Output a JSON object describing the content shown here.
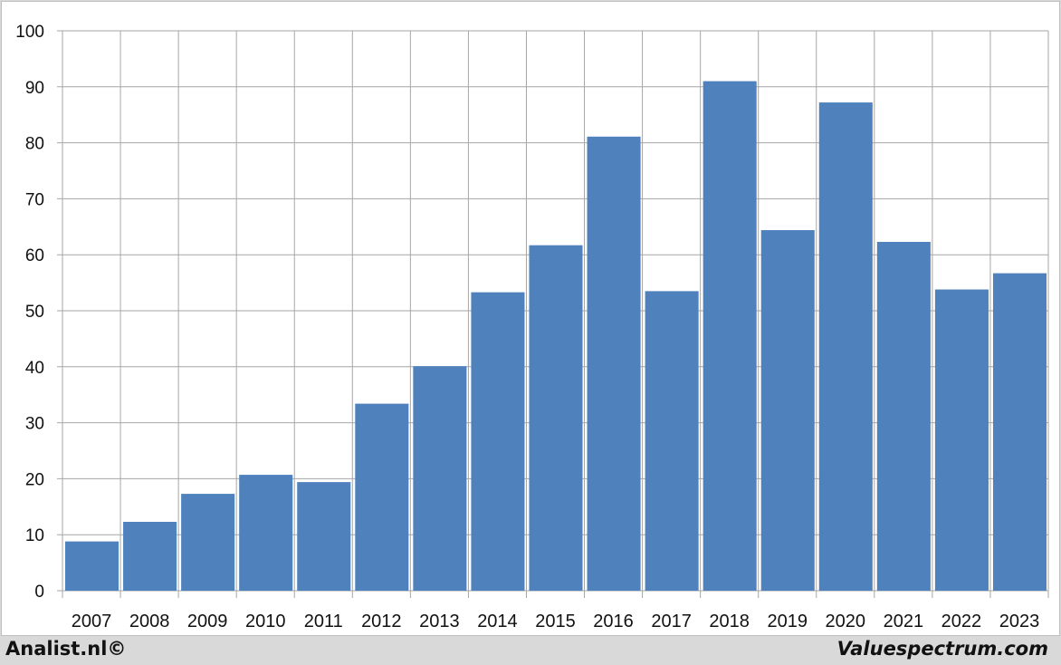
{
  "chart_data": {
    "type": "bar",
    "categories": [
      "2007",
      "2008",
      "2009",
      "2010",
      "2011",
      "2012",
      "2013",
      "2014",
      "2015",
      "2016",
      "2017",
      "2018",
      "2019",
      "2020",
      "2021",
      "2022",
      "2023"
    ],
    "values": [
      8.8,
      12.3,
      17.3,
      20.7,
      19.4,
      33.4,
      40.1,
      53.3,
      61.7,
      81.1,
      53.5,
      91.0,
      64.4,
      87.2,
      62.3,
      53.8,
      56.7
    ],
    "ylim": [
      0,
      100
    ],
    "yticks": [
      "0",
      "10",
      "20",
      "30",
      "40",
      "50",
      "60",
      "70",
      "80",
      "90",
      "100"
    ],
    "grid": true,
    "bar_color": "#4f81bd",
    "grid_color": "#a6a6a6"
  },
  "footer": {
    "left": "Analist.nl©",
    "right": "Valuespectrum.com"
  }
}
